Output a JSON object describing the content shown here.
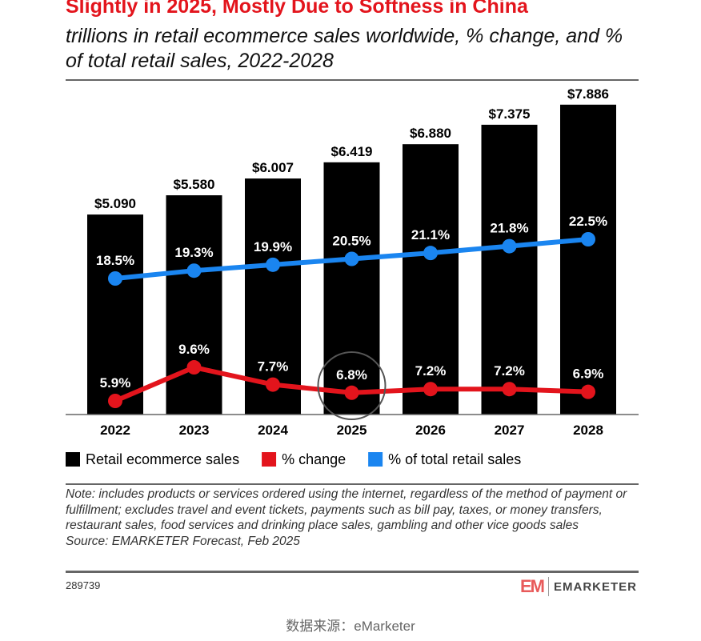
{
  "chart_data": {
    "type": "bar",
    "title": "Slightly in 2025, Mostly Due to Softness in China",
    "subtitle": "trillions in retail ecommerce sales worldwide, % change, and % of total retail sales, 2022-2028",
    "categories": [
      "2022",
      "2023",
      "2024",
      "2025",
      "2026",
      "2027",
      "2028"
    ],
    "series": [
      {
        "name": "Retail ecommerce sales",
        "type": "bar",
        "color": "#000000",
        "values": [
          5.09,
          5.58,
          6.007,
          6.419,
          6.88,
          7.375,
          7.886
        ],
        "labels": [
          "$5.090",
          "$5.580",
          "$6.007",
          "$6.419",
          "$6.880",
          "$7.375",
          "$7.886"
        ]
      },
      {
        "name": "% change",
        "type": "line",
        "color": "#e3141c",
        "values": [
          5.9,
          9.6,
          7.7,
          6.8,
          7.2,
          7.2,
          6.9
        ],
        "labels": [
          "5.9%",
          "9.6%",
          "7.7%",
          "6.8%",
          "7.2%",
          "7.2%",
          "6.9%"
        ]
      },
      {
        "name": "% of total retail sales",
        "type": "line",
        "color": "#1a85f0",
        "values": [
          18.5,
          19.3,
          19.9,
          20.5,
          21.1,
          21.8,
          22.5
        ],
        "labels": [
          "18.5%",
          "19.3%",
          "19.9%",
          "20.5%",
          "21.1%",
          "21.8%",
          "22.5%"
        ]
      }
    ],
    "highlight": "2025",
    "legend": "bottom",
    "grid": false
  },
  "note": "Note: includes products or services ordered using the internet, regardless of the method of payment or fulfillment; excludes travel and event tickets, payments such as bill pay, taxes, or money transfers, restaurant sales, food services and drinking place sales, gambling and other vice goods sales",
  "source": "Source: EMARKETER Forecast, Feb 2025",
  "chart_id": "289739",
  "logo": {
    "mark": "EM",
    "name": "EMARKETER"
  },
  "caption": "数据来源：eMarketer"
}
